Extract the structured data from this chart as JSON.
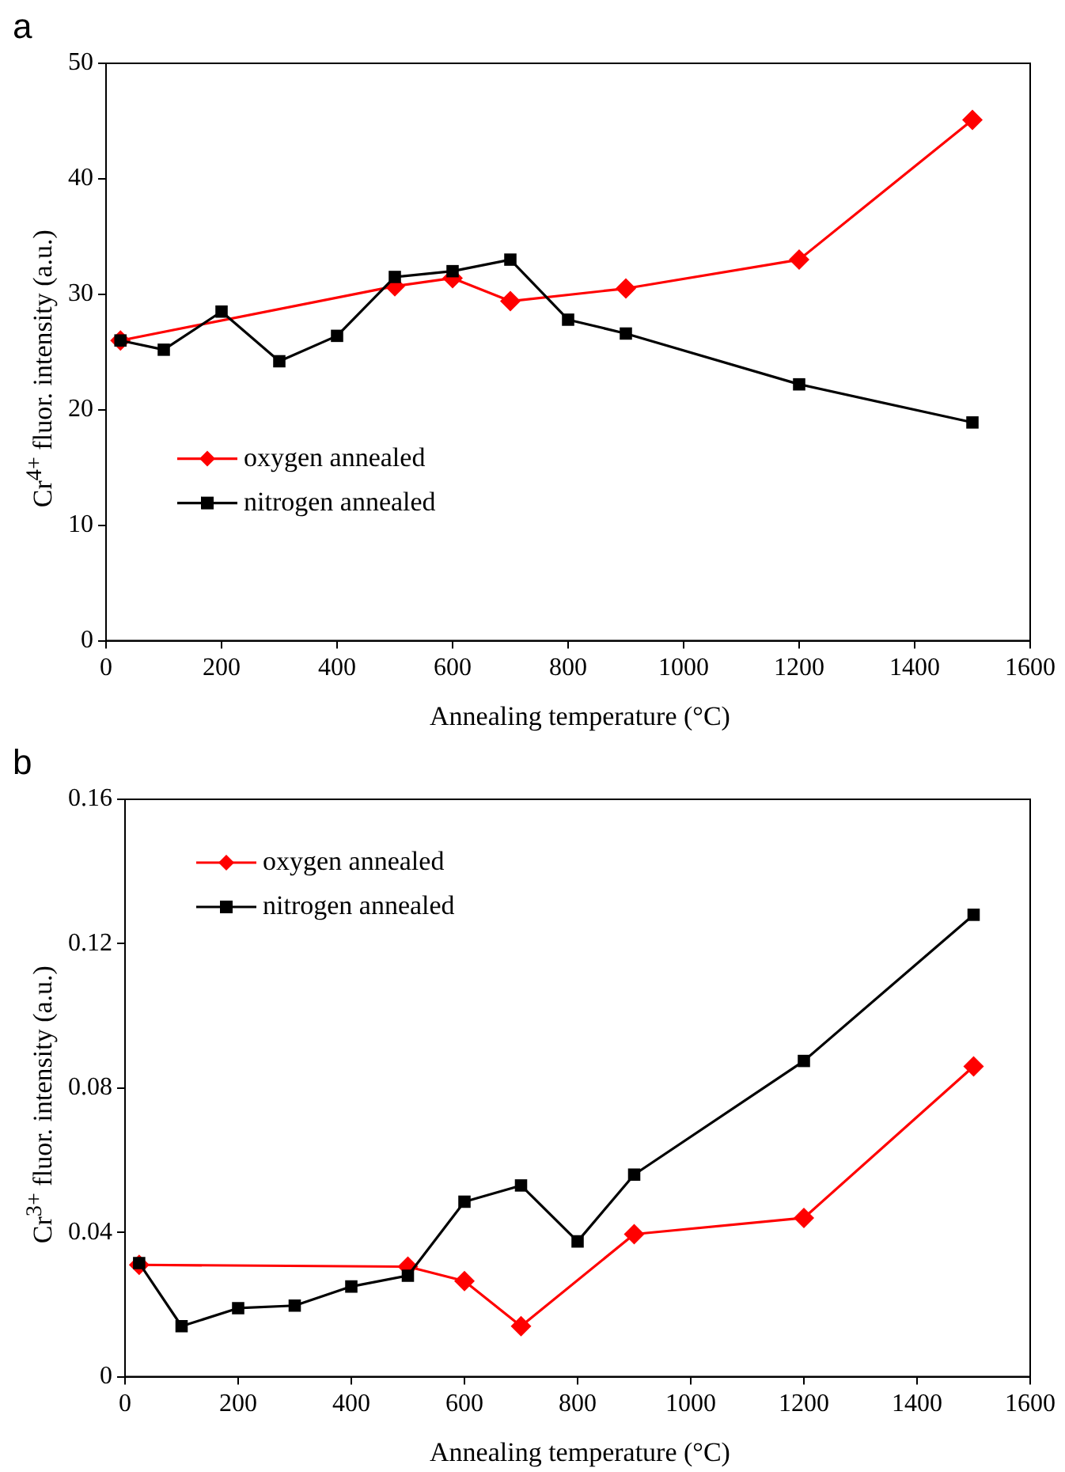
{
  "chart_data": [
    {
      "type": "line",
      "annotations": [
        "a"
      ],
      "xlabel": "Annealing temperature (°C)",
      "ylabel": "Cr$^{4+}$ fluor. intensity (a.u.)",
      "xlim": [
        0,
        1600
      ],
      "xticks": [
        0,
        200,
        400,
        600,
        800,
        1000,
        1200,
        1400,
        1600
      ],
      "ylim": [
        0,
        50
      ],
      "yticks": [
        0,
        10,
        20,
        30,
        40,
        50
      ],
      "grid": false,
      "legend": "bottom left",
      "series": [
        {
          "name": "oxygen annealed",
          "color": "#ff0000",
          "marker": "diamond",
          "x": [
            25,
            500,
            600,
            700,
            900,
            1200,
            1500
          ],
          "values": [
            26,
            30.7,
            31.4,
            29.4,
            30.5,
            33,
            45.1
          ]
        },
        {
          "name": "nitrogen annealed",
          "color": "#000000",
          "marker": "square",
          "x": [
            25,
            100,
            200,
            300,
            400,
            500,
            600,
            700,
            800,
            900,
            1200,
            1500
          ],
          "values": [
            26,
            25.2,
            28.5,
            24.2,
            26.4,
            31.5,
            32,
            33,
            27.8,
            26.6,
            22.2,
            18.9
          ]
        }
      ]
    },
    {
      "type": "line",
      "annotations": [
        "b"
      ],
      "xlabel": "Annealing temperature (°C)",
      "ylabel": "Cr$^{3+}$ fluor. intensity (a.u.)",
      "xlim": [
        0,
        1600
      ],
      "xticks": [
        0,
        200,
        400,
        600,
        800,
        1000,
        1200,
        1400,
        1600
      ],
      "ylim": [
        0,
        0.16
      ],
      "yticks": [
        {
          "value": 0,
          "label": "0"
        },
        {
          "value": 0.04,
          "label": "0.04"
        },
        {
          "value": 0.08,
          "label": "0.08"
        },
        {
          "value": 0.12,
          "label": "0.12"
        },
        {
          "value": 0.16,
          "label": "0.16"
        }
      ],
      "grid": false,
      "legend": "top left",
      "series": [
        {
          "name": "oxygen annealed",
          "color": "#ff0000",
          "marker": "diamond",
          "x": [
            25,
            500,
            600,
            700,
            900,
            1200,
            1500
          ],
          "values": [
            0.031,
            0.0305,
            0.0265,
            0.014,
            0.0395,
            0.044,
            0.086
          ]
        },
        {
          "name": "nitrogen annealed",
          "color": "#000000",
          "marker": "square",
          "x": [
            25,
            100,
            200,
            300,
            400,
            500,
            600,
            700,
            800,
            900,
            1200,
            1500
          ],
          "values": [
            0.0315,
            0.014,
            0.019,
            0.0197,
            0.025,
            0.028,
            0.0485,
            0.053,
            0.0375,
            0.056,
            0.0875,
            0.128
          ]
        }
      ]
    }
  ]
}
